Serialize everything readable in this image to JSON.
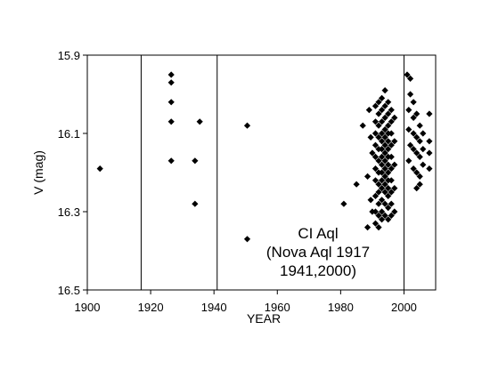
{
  "chart_data": {
    "type": "scatter",
    "xlabel": "YEAR",
    "ylabel": "V (mag)",
    "xlim": [
      1900,
      2010
    ],
    "ylim": [
      16.5,
      15.9
    ],
    "y_reversed": true,
    "xticks": [
      1900,
      1920,
      1940,
      1960,
      1980,
      2000
    ],
    "yticks": [
      15.9,
      16.1,
      16.3,
      16.5
    ],
    "ytick_labels": [
      "15.9",
      "16.1",
      "16.3",
      "16.5"
    ],
    "grid": false,
    "marker": "diamond",
    "color": "#000000",
    "nova_outbursts": [
      1917,
      1941,
      2000
    ],
    "annotation": [
      "CI Aql",
      "(Nova Aql 1917",
      "1941,2000)"
    ],
    "points": [
      [
        1904,
        16.19
      ],
      [
        1926.5,
        15.95
      ],
      [
        1926.5,
        15.97
      ],
      [
        1926.5,
        16.02
      ],
      [
        1926.5,
        16.07
      ],
      [
        1926.5,
        16.17
      ],
      [
        1934,
        16.17
      ],
      [
        1934,
        16.28
      ],
      [
        1935.5,
        16.07
      ],
      [
        1950.5,
        16.08
      ],
      [
        1950.5,
        16.37
      ],
      [
        1981,
        16.28
      ],
      [
        1985,
        16.23
      ],
      [
        1987,
        16.08
      ],
      [
        1988.5,
        16.21
      ],
      [
        1988.5,
        16.34
      ],
      [
        1989,
        16.04
      ],
      [
        1989.5,
        16.11
      ],
      [
        1989.5,
        16.27
      ],
      [
        1990,
        16.15
      ],
      [
        1990,
        16.3
      ],
      [
        1991,
        16.03
      ],
      [
        1991,
        16.07
      ],
      [
        1991,
        16.1
      ],
      [
        1991,
        16.13
      ],
      [
        1991,
        16.16
      ],
      [
        1991,
        16.19
      ],
      [
        1991,
        16.22
      ],
      [
        1991,
        16.26
      ],
      [
        1991,
        16.3
      ],
      [
        1991,
        16.33
      ],
      [
        1992,
        16.02
      ],
      [
        1992,
        16.05
      ],
      [
        1992,
        16.08
      ],
      [
        1992,
        16.11
      ],
      [
        1992,
        16.14
      ],
      [
        1992,
        16.17
      ],
      [
        1992,
        16.2
      ],
      [
        1992,
        16.23
      ],
      [
        1992,
        16.25
      ],
      [
        1992,
        16.28
      ],
      [
        1992,
        16.31
      ],
      [
        1992,
        16.34
      ],
      [
        1993,
        16.01
      ],
      [
        1993,
        16.04
      ],
      [
        1993,
        16.07
      ],
      [
        1993,
        16.1
      ],
      [
        1993,
        16.12
      ],
      [
        1993,
        16.14
      ],
      [
        1993,
        16.16
      ],
      [
        1993,
        16.18
      ],
      [
        1993,
        16.2
      ],
      [
        1993,
        16.22
      ],
      [
        1993,
        16.24
      ],
      [
        1993,
        16.27
      ],
      [
        1993,
        16.3
      ],
      [
        1993,
        16.32
      ],
      [
        1994,
        15.99
      ],
      [
        1994,
        16.03
      ],
      [
        1994,
        16.06
      ],
      [
        1994,
        16.09
      ],
      [
        1994,
        16.11
      ],
      [
        1994,
        16.13
      ],
      [
        1994,
        16.15
      ],
      [
        1994,
        16.17
      ],
      [
        1994,
        16.19
      ],
      [
        1994,
        16.21
      ],
      [
        1994,
        16.23
      ],
      [
        1994,
        16.25
      ],
      [
        1994,
        16.28
      ],
      [
        1994,
        16.31
      ],
      [
        1995,
        16.02
      ],
      [
        1995,
        16.05
      ],
      [
        1995,
        16.08
      ],
      [
        1995,
        16.1
      ],
      [
        1995,
        16.12
      ],
      [
        1995,
        16.14
      ],
      [
        1995,
        16.16
      ],
      [
        1995,
        16.18
      ],
      [
        1995,
        16.2
      ],
      [
        1995,
        16.22
      ],
      [
        1995,
        16.24
      ],
      [
        1995,
        16.26
      ],
      [
        1995,
        16.29
      ],
      [
        1995,
        16.32
      ],
      [
        1996,
        16.04
      ],
      [
        1996,
        16.07
      ],
      [
        1996,
        16.1
      ],
      [
        1996,
        16.13
      ],
      [
        1996,
        16.16
      ],
      [
        1996,
        16.19
      ],
      [
        1996,
        16.22
      ],
      [
        1996,
        16.25
      ],
      [
        1996,
        16.28
      ],
      [
        1996,
        16.31
      ],
      [
        1997,
        16.06
      ],
      [
        1997,
        16.12
      ],
      [
        1997,
        16.18
      ],
      [
        1997,
        16.24
      ],
      [
        1997,
        16.3
      ],
      [
        2001,
        15.95
      ],
      [
        2001.5,
        16.04
      ],
      [
        2001.5,
        16.09
      ],
      [
        2001.5,
        16.17
      ],
      [
        2002,
        15.96
      ],
      [
        2002,
        16.0
      ],
      [
        2002,
        16.13
      ],
      [
        2003,
        16.02
      ],
      [
        2003,
        16.06
      ],
      [
        2003,
        16.1
      ],
      [
        2003,
        16.14
      ],
      [
        2003,
        16.19
      ],
      [
        2004,
        16.05
      ],
      [
        2004,
        16.11
      ],
      [
        2004,
        16.15
      ],
      [
        2004,
        16.2
      ],
      [
        2004,
        16.24
      ],
      [
        2005,
        16.08
      ],
      [
        2005,
        16.12
      ],
      [
        2005,
        16.16
      ],
      [
        2005,
        16.21
      ],
      [
        2005,
        16.23
      ],
      [
        2006,
        16.1
      ],
      [
        2006,
        16.14
      ],
      [
        2006,
        16.18
      ],
      [
        2008,
        16.05
      ],
      [
        2008,
        16.12
      ],
      [
        2008,
        16.15
      ],
      [
        2008,
        16.19
      ]
    ]
  }
}
